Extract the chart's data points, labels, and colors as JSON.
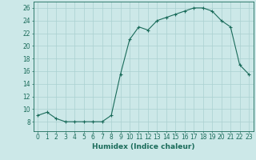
{
  "x": [
    0,
    1,
    2,
    3,
    4,
    5,
    6,
    7,
    8,
    9,
    10,
    11,
    12,
    13,
    14,
    15,
    16,
    17,
    18,
    19,
    20,
    21,
    22,
    23
  ],
  "y": [
    9,
    9.5,
    8.5,
    8,
    8,
    8,
    8,
    8,
    9,
    15.5,
    21,
    23,
    22.5,
    24,
    24.5,
    25,
    25.5,
    26,
    26,
    25.5,
    24,
    23,
    17,
    15.5
  ],
  "line_color": "#1a6b5a",
  "marker_color": "#1a6b5a",
  "bg_color": "#cce8e8",
  "grid_color": "#aad0d0",
  "xlabel": "Humidex (Indice chaleur)",
  "ylim": [
    6.5,
    27
  ],
  "xlim": [
    -0.5,
    23.5
  ],
  "yticks": [
    8,
    10,
    12,
    14,
    16,
    18,
    20,
    22,
    24,
    26
  ],
  "xticks": [
    0,
    1,
    2,
    3,
    4,
    5,
    6,
    7,
    8,
    9,
    10,
    11,
    12,
    13,
    14,
    15,
    16,
    17,
    18,
    19,
    20,
    21,
    22,
    23
  ],
  "tick_fontsize": 5.5,
  "label_fontsize": 6.5
}
